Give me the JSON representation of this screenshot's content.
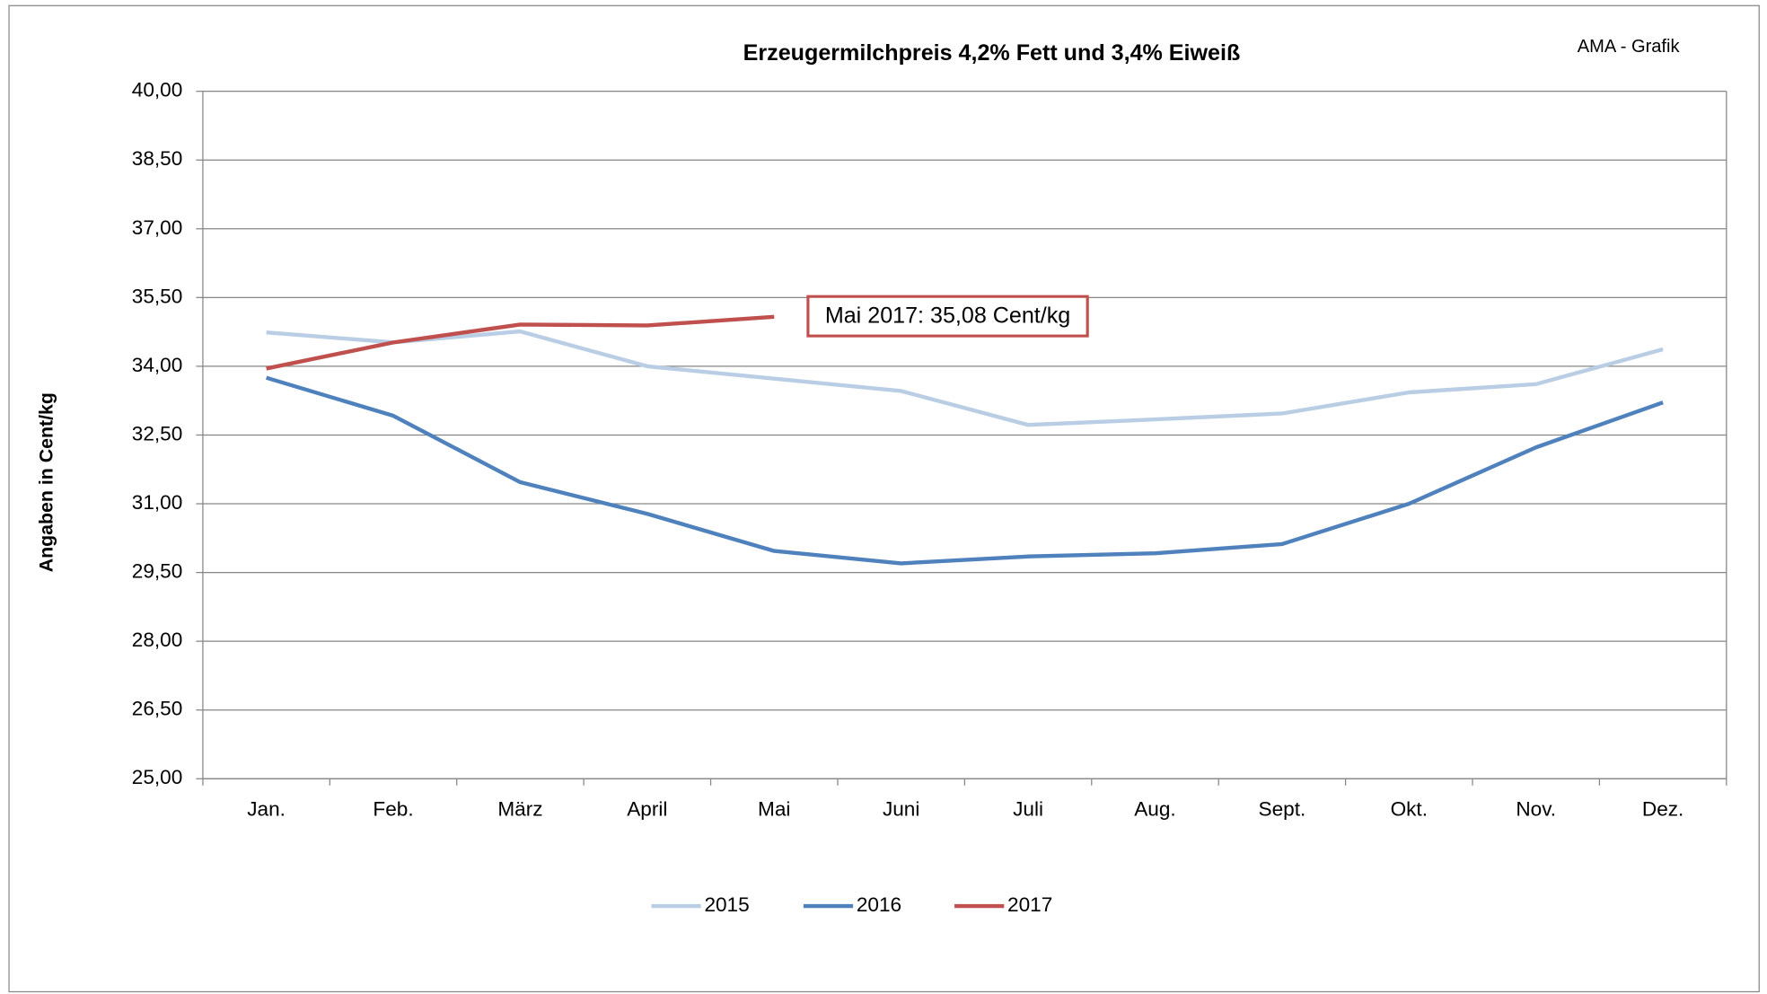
{
  "chart_data": {
    "type": "line",
    "title": "Erzeugermilchpreis 4,2% Fett und 3,4% Eiweiß",
    "subtitle": "AMA - Grafik",
    "y_label": "Angaben in Cent/kg",
    "categories": [
      "Jan.",
      "Feb.",
      "März",
      "April",
      "Mai",
      "Juni",
      "Juli",
      "Aug.",
      "Sept.",
      "Okt.",
      "Nov.",
      "Dez."
    ],
    "series": [
      {
        "name": "2015",
        "color": "#b9cde5",
        "values": [
          34.74,
          34.52,
          34.76,
          34.0,
          33.73,
          33.46,
          32.72,
          32.84,
          32.97,
          33.43,
          33.61,
          34.37
        ]
      },
      {
        "name": "2016",
        "color": "#4f81bd",
        "values": [
          33.75,
          32.92,
          31.47,
          30.78,
          29.97,
          29.7,
          29.85,
          29.92,
          30.12,
          31.0,
          32.23,
          33.21
        ]
      },
      {
        "name": "2017",
        "color": "#c0504d",
        "values": [
          33.95,
          34.52,
          34.91,
          34.89,
          35.08,
          null,
          null,
          null,
          null,
          null,
          null,
          null
        ]
      }
    ],
    "annotation": "Mai 2017: 35,08 Cent/kg",
    "ylim": [
      25,
      40
    ],
    "yticks": [
      {
        "value": 25,
        "label": "25,00"
      },
      {
        "value": 26.5,
        "label": "26,50"
      },
      {
        "value": 28,
        "label": "28,00"
      },
      {
        "value": 29.5,
        "label": "29,50"
      },
      {
        "value": 31,
        "label": "31,00"
      },
      {
        "value": 32.5,
        "label": "32,50"
      },
      {
        "value": 34,
        "label": "34,00"
      },
      {
        "value": 35.5,
        "label": "35,50"
      },
      {
        "value": 37,
        "label": "37,00"
      },
      {
        "value": 38.5,
        "label": "38,50"
      },
      {
        "value": 40,
        "label": "40,00"
      }
    ],
    "grid": true,
    "legend": "bottom"
  }
}
